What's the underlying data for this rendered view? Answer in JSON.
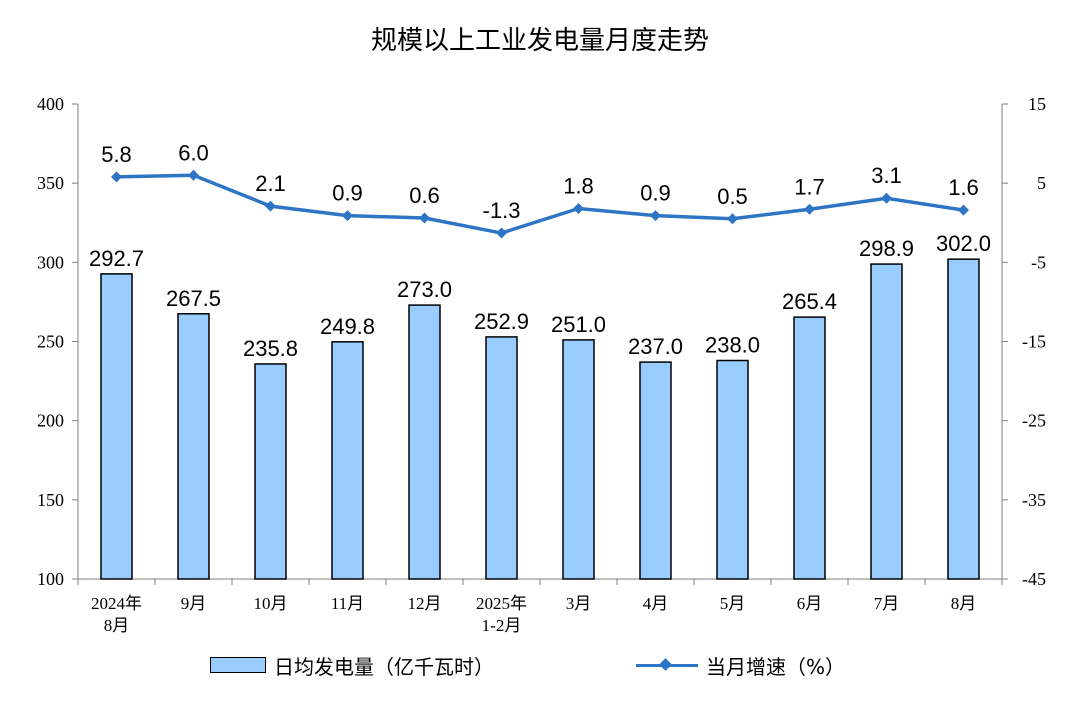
{
  "chart_data": {
    "type": "bar",
    "title": "规模以上工业发电量月度走势",
    "categories": [
      [
        "2024年",
        "8月"
      ],
      [
        "9月"
      ],
      [
        "10月"
      ],
      [
        "11月"
      ],
      [
        "12月"
      ],
      [
        "2025年",
        "1-2月"
      ],
      [
        "3月"
      ],
      [
        "4月"
      ],
      [
        "5月"
      ],
      [
        "6月"
      ],
      [
        "7月"
      ],
      [
        "8月"
      ]
    ],
    "series": [
      {
        "name": "日均发电量（亿千瓦时）",
        "type": "bar",
        "axis": "left",
        "color": "#99ccff",
        "values": [
          292.7,
          267.5,
          235.8,
          249.8,
          273.0,
          252.9,
          251.0,
          237.0,
          238.0,
          265.4,
          298.9,
          302.0
        ],
        "labels": [
          "292.7",
          "267.5",
          "235.8",
          "249.8",
          "273.0",
          "252.9",
          "251.0",
          "237.0",
          "238.0",
          "265.4",
          "298.9",
          "302.0"
        ]
      },
      {
        "name": "当月增速（%）",
        "type": "line",
        "axis": "right",
        "color": "#2e75c6",
        "values": [
          5.8,
          6.0,
          2.1,
          0.9,
          0.6,
          -1.3,
          1.8,
          0.9,
          0.5,
          1.7,
          3.1,
          1.6
        ],
        "labels": [
          "5.8",
          "6.0",
          "2.1",
          "0.9",
          "0.6",
          "-1.3",
          "1.8",
          "0.9",
          "0.5",
          "1.7",
          "3.1",
          "1.6"
        ]
      }
    ],
    "y_left": {
      "min": 100,
      "max": 400,
      "ticks": [
        400,
        350,
        300,
        250,
        200,
        150,
        100
      ]
    },
    "y_right": {
      "min": -45,
      "max": 15,
      "ticks": [
        15,
        5,
        -5,
        -15,
        -25,
        -35,
        -45
      ]
    },
    "grid": false,
    "legend_position": "bottom"
  }
}
